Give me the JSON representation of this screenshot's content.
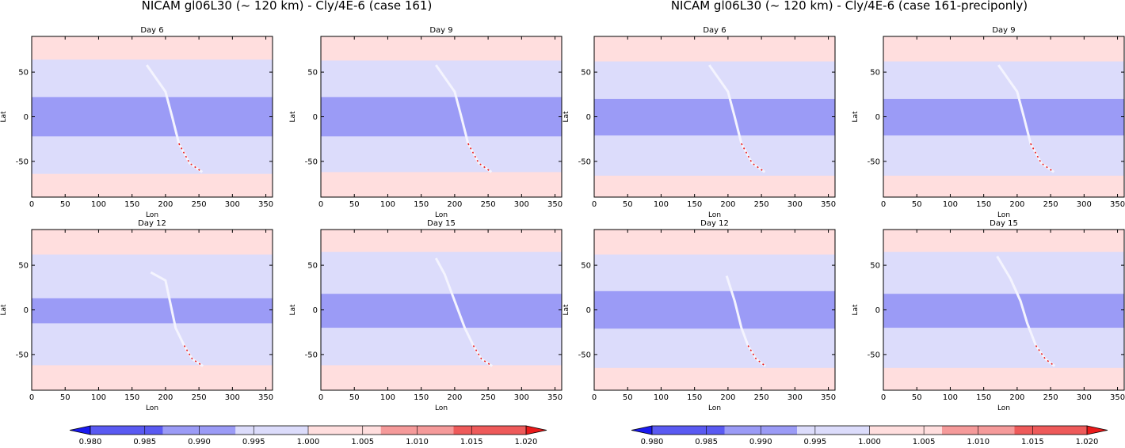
{
  "figure_titles": [
    "NICAM gl06L30 (~ 120 km) - Cly/4E-6 (case 161)",
    "NICAM gl06L30 (~ 120 km) - Cly/4E-6 (case 161-preciponly)"
  ],
  "colors": {
    "bins": [
      "#1a1aef",
      "#5a5af2",
      "#9b9bf6",
      "#dcdcfb",
      "#ffdede",
      "#f59a9a",
      "#ee5a5a",
      "#ea1a1a"
    ],
    "frame": "#000000"
  },
  "colorbar": {
    "levels": [
      0.98,
      0.985,
      0.99,
      0.995,
      1.0,
      1.005,
      1.01,
      1.015,
      1.02
    ],
    "tick_labels": [
      "0.980",
      "0.985",
      "0.990",
      "0.995",
      "1.000",
      "1.005",
      "1.010",
      "1.015",
      "1.020"
    ],
    "extend": "both"
  },
  "chart_data": [
    {
      "type": "heatmap",
      "panel": "left-1",
      "group": "case 161",
      "title": "Day 6",
      "xlabel": "Lon",
      "ylabel": "Lat",
      "xlim": [
        0,
        360
      ],
      "ylim": [
        -90,
        90
      ],
      "xticks": [
        0,
        50,
        100,
        150,
        200,
        250,
        300,
        350
      ],
      "yticks": [
        -50,
        0,
        50
      ],
      "background_value": 1.002,
      "bands": [
        {
          "lat_range": [
            -64,
            64
          ],
          "value": 0.997
        },
        {
          "lat_range": [
            -22,
            22
          ],
          "value": 0.992
        }
      ],
      "filament": {
        "lon_lat": [
          [
            172,
            58
          ],
          [
            200,
            28
          ],
          [
            210,
            0
          ],
          [
            220,
            -30
          ],
          [
            236,
            -52
          ],
          [
            255,
            -62
          ]
        ],
        "value": 1.017
      }
    },
    {
      "type": "heatmap",
      "panel": "left-2",
      "group": "case 161",
      "title": "Day 9",
      "xlabel": "Lon",
      "ylabel": "Lat",
      "xlim": [
        0,
        360
      ],
      "ylim": [
        -90,
        90
      ],
      "xticks": [
        0,
        50,
        100,
        150,
        200,
        250,
        300,
        350
      ],
      "yticks": [
        -50,
        0,
        50
      ],
      "background_value": 1.002,
      "bands": [
        {
          "lat_range": [
            -62,
            63
          ],
          "value": 0.997
        },
        {
          "lat_range": [
            -22,
            22
          ],
          "value": 0.992
        }
      ],
      "filament": {
        "lon_lat": [
          [
            172,
            58
          ],
          [
            200,
            28
          ],
          [
            210,
            0
          ],
          [
            220,
            -30
          ],
          [
            236,
            -52
          ],
          [
            255,
            -62
          ]
        ],
        "value": 1.017
      }
    },
    {
      "type": "heatmap",
      "panel": "left-3",
      "group": "case 161",
      "title": "Day 12",
      "xlabel": "Lon",
      "ylabel": "Lat",
      "xlim": [
        0,
        360
      ],
      "ylim": [
        -90,
        90
      ],
      "xticks": [
        0,
        50,
        100,
        150,
        200,
        250,
        300,
        350
      ],
      "yticks": [
        -50,
        0,
        50
      ],
      "background_value": 1.002,
      "bands": [
        {
          "lat_range": [
            -62,
            62
          ],
          "value": 0.997
        },
        {
          "lat_range": [
            -15,
            13
          ],
          "value": 0.992
        }
      ],
      "filament": {
        "lon_lat": [
          [
            178,
            42
          ],
          [
            200,
            33
          ],
          [
            215,
            -20
          ],
          [
            228,
            -40
          ],
          [
            240,
            -55
          ],
          [
            256,
            -63
          ]
        ],
        "value": 1.017
      }
    },
    {
      "type": "heatmap",
      "panel": "left-4",
      "group": "case 161",
      "title": "Day 15",
      "xlabel": "Lon",
      "ylabel": "Lat",
      "xlim": [
        0,
        360
      ],
      "ylim": [
        -90,
        90
      ],
      "xticks": [
        0,
        50,
        100,
        150,
        200,
        250,
        300,
        350
      ],
      "yticks": [
        -50,
        0,
        50
      ],
      "background_value": 1.002,
      "bands": [
        {
          "lat_range": [
            -62,
            65
          ],
          "value": 0.997
        },
        {
          "lat_range": [
            -20,
            18
          ],
          "value": 0.992
        }
      ],
      "filament": {
        "lon_lat": [
          [
            172,
            58
          ],
          [
            185,
            40
          ],
          [
            215,
            -20
          ],
          [
            228,
            -40
          ],
          [
            240,
            -55
          ],
          [
            256,
            -63
          ]
        ],
        "value": 1.017
      }
    },
    {
      "type": "heatmap",
      "panel": "right-1",
      "group": "case 161-preciponly",
      "title": "Day 6",
      "xlabel": "Lon",
      "ylabel": "Lat",
      "xlim": [
        0,
        360
      ],
      "ylim": [
        -90,
        90
      ],
      "xticks": [
        0,
        50,
        100,
        150,
        200,
        250,
        300,
        350
      ],
      "yticks": [
        -50,
        0,
        50
      ],
      "background_value": 1.002,
      "bands": [
        {
          "lat_range": [
            -66,
            62
          ],
          "value": 0.997
        },
        {
          "lat_range": [
            -21,
            20
          ],
          "value": 0.992
        }
      ],
      "filament": {
        "lon_lat": [
          [
            172,
            58
          ],
          [
            200,
            28
          ],
          [
            210,
            0
          ],
          [
            220,
            -30
          ],
          [
            236,
            -52
          ],
          [
            255,
            -62
          ]
        ],
        "value": 1.017
      }
    },
    {
      "type": "heatmap",
      "panel": "right-2",
      "group": "case 161-preciponly",
      "title": "Day 9",
      "xlabel": "Lon",
      "ylabel": "Lat",
      "xlim": [
        0,
        360
      ],
      "ylim": [
        -90,
        90
      ],
      "xticks": [
        0,
        50,
        100,
        150,
        200,
        250,
        300,
        350
      ],
      "yticks": [
        -50,
        0,
        50
      ],
      "background_value": 1.002,
      "bands": [
        {
          "lat_range": [
            -66,
            62
          ],
          "value": 0.997
        },
        {
          "lat_range": [
            -21,
            20
          ],
          "value": 0.992
        }
      ],
      "filament": {
        "lon_lat": [
          [
            172,
            58
          ],
          [
            200,
            28
          ],
          [
            210,
            0
          ],
          [
            220,
            -30
          ],
          [
            236,
            -52
          ],
          [
            255,
            -62
          ]
        ],
        "value": 1.017
      }
    },
    {
      "type": "heatmap",
      "panel": "right-3",
      "group": "case 161-preciponly",
      "title": "Day 12",
      "xlabel": "Lon",
      "ylabel": "Lat",
      "xlim": [
        0,
        360
      ],
      "ylim": [
        -90,
        90
      ],
      "xticks": [
        0,
        50,
        100,
        150,
        200,
        250,
        300,
        350
      ],
      "yticks": [
        -50,
        0,
        50
      ],
      "background_value": 1.002,
      "bands": [
        {
          "lat_range": [
            -65,
            62
          ],
          "value": 0.997
        },
        {
          "lat_range": [
            -21,
            21
          ],
          "value": 0.992
        }
      ],
      "filament": {
        "lon_lat": [
          [
            198,
            38
          ],
          [
            210,
            10
          ],
          [
            220,
            -20
          ],
          [
            230,
            -40
          ],
          [
            242,
            -55
          ],
          [
            256,
            -63
          ]
        ],
        "value": 1.017
      }
    },
    {
      "type": "heatmap",
      "panel": "right-4",
      "group": "case 161-preciponly",
      "title": "Day 15",
      "xlabel": "Lon",
      "ylabel": "Lat",
      "xlim": [
        0,
        360
      ],
      "ylim": [
        -90,
        90
      ],
      "xticks": [
        0,
        50,
        100,
        150,
        200,
        250,
        300,
        350
      ],
      "yticks": [
        -50,
        0,
        50
      ],
      "background_value": 1.002,
      "bands": [
        {
          "lat_range": [
            -65,
            65
          ],
          "value": 0.997
        },
        {
          "lat_range": [
            -20,
            18
          ],
          "value": 0.992
        }
      ],
      "filament": {
        "lon_lat": [
          [
            170,
            60
          ],
          [
            190,
            35
          ],
          [
            205,
            10
          ],
          [
            215,
            -15
          ],
          [
            228,
            -40
          ],
          [
            242,
            -55
          ],
          [
            256,
            -63
          ]
        ],
        "value": 1.017
      }
    }
  ]
}
